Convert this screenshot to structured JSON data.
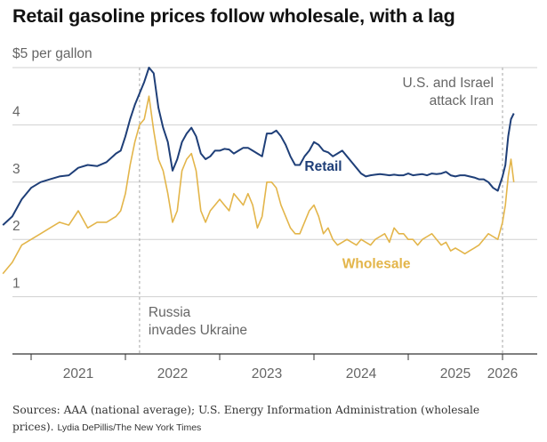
{
  "colors": {
    "retail": "#1f3f78",
    "wholesale": "#e3b54a",
    "grid": "#d0d0d0",
    "annotation_line": "#a6a6a6",
    "axis": "#333333"
  },
  "chart_data": {
    "type": "line",
    "title": "Retail gasoline prices follow wholesale, with a lag",
    "ylabel": "$5 per gallon",
    "ylim": [
      0,
      5
    ],
    "y_ticks": [
      1,
      2,
      3,
      4
    ],
    "xlim": [
      2020.7,
      2026.2
    ],
    "x_tick_labels": [
      "2021",
      "2022",
      "2023",
      "2024",
      "2025",
      "2026"
    ],
    "x_tick_positions": [
      2021.5,
      2022.5,
      2023.5,
      2024.5,
      2025.5,
      2026.0
    ],
    "x_boundaries": [
      2021,
      2022,
      2023,
      2024,
      2025,
      2026
    ],
    "grid": true,
    "series": [
      {
        "name": "Retail",
        "x": [
          2020.7,
          2020.8,
          2020.9,
          2021.0,
          2021.1,
          2021.2,
          2021.3,
          2021.4,
          2021.5,
          2021.6,
          2021.7,
          2021.8,
          2021.9,
          2021.95,
          2022.0,
          2022.05,
          2022.1,
          2022.15,
          2022.2,
          2022.25,
          2022.3,
          2022.35,
          2022.4,
          2022.45,
          2022.5,
          2022.55,
          2022.6,
          2022.65,
          2022.7,
          2022.75,
          2022.8,
          2022.85,
          2022.9,
          2022.95,
          2023.0,
          2023.05,
          2023.1,
          2023.15,
          2023.2,
          2023.25,
          2023.3,
          2023.35,
          2023.4,
          2023.45,
          2023.5,
          2023.55,
          2023.6,
          2023.65,
          2023.7,
          2023.75,
          2023.8,
          2023.85,
          2023.9,
          2023.95,
          2024.0,
          2024.05,
          2024.1,
          2024.15,
          2024.2,
          2024.25,
          2024.3,
          2024.35,
          2024.4,
          2024.45,
          2024.5,
          2024.55,
          2024.6,
          2024.65,
          2024.7,
          2024.75,
          2024.8,
          2024.85,
          2024.9,
          2024.95,
          2025.0,
          2025.05,
          2025.1,
          2025.15,
          2025.2,
          2025.25,
          2025.3,
          2025.35,
          2025.4,
          2025.45,
          2025.5,
          2025.55,
          2025.6,
          2025.65,
          2025.7,
          2025.75,
          2025.8,
          2025.85,
          2025.9,
          2025.95,
          2026.0,
          2026.03,
          2026.06,
          2026.09,
          2026.12
        ],
        "values": [
          2.25,
          2.4,
          2.7,
          2.9,
          3.0,
          3.05,
          3.1,
          3.12,
          3.25,
          3.3,
          3.28,
          3.35,
          3.5,
          3.55,
          3.8,
          4.1,
          4.35,
          4.55,
          4.75,
          5.0,
          4.9,
          4.3,
          3.95,
          3.7,
          3.2,
          3.4,
          3.7,
          3.85,
          3.95,
          3.8,
          3.5,
          3.4,
          3.45,
          3.55,
          3.55,
          3.58,
          3.57,
          3.5,
          3.55,
          3.6,
          3.6,
          3.55,
          3.5,
          3.45,
          3.85,
          3.85,
          3.9,
          3.8,
          3.65,
          3.45,
          3.3,
          3.3,
          3.45,
          3.55,
          3.7,
          3.65,
          3.55,
          3.52,
          3.45,
          3.5,
          3.55,
          3.45,
          3.35,
          3.25,
          3.15,
          3.1,
          3.12,
          3.13,
          3.14,
          3.13,
          3.12,
          3.13,
          3.12,
          3.12,
          3.15,
          3.12,
          3.13,
          3.14,
          3.12,
          3.15,
          3.14,
          3.15,
          3.18,
          3.12,
          3.1,
          3.12,
          3.12,
          3.1,
          3.08,
          3.05,
          3.05,
          3.0,
          2.9,
          2.85,
          3.1,
          3.3,
          3.8,
          4.1,
          4.2
        ]
      },
      {
        "name": "Wholesale",
        "x": [
          2020.7,
          2020.8,
          2020.9,
          2021.0,
          2021.1,
          2021.2,
          2021.3,
          2021.4,
          2021.5,
          2021.6,
          2021.7,
          2021.8,
          2021.9,
          2021.95,
          2022.0,
          2022.05,
          2022.1,
          2022.15,
          2022.2,
          2022.25,
          2022.3,
          2022.35,
          2022.4,
          2022.45,
          2022.5,
          2022.55,
          2022.6,
          2022.65,
          2022.7,
          2022.75,
          2022.8,
          2022.85,
          2022.9,
          2022.95,
          2023.0,
          2023.05,
          2023.1,
          2023.15,
          2023.2,
          2023.25,
          2023.3,
          2023.35,
          2023.4,
          2023.45,
          2023.5,
          2023.55,
          2023.6,
          2023.65,
          2023.7,
          2023.75,
          2023.8,
          2023.85,
          2023.9,
          2023.95,
          2024.0,
          2024.05,
          2024.1,
          2024.15,
          2024.2,
          2024.25,
          2024.3,
          2024.35,
          2024.4,
          2024.45,
          2024.5,
          2024.55,
          2024.6,
          2024.65,
          2024.7,
          2024.75,
          2024.8,
          2024.85,
          2024.9,
          2024.95,
          2025.0,
          2025.05,
          2025.1,
          2025.15,
          2025.2,
          2025.25,
          2025.3,
          2025.35,
          2025.4,
          2025.45,
          2025.5,
          2025.55,
          2025.6,
          2025.65,
          2025.7,
          2025.75,
          2025.8,
          2025.85,
          2025.9,
          2025.95,
          2026.0,
          2026.03,
          2026.06,
          2026.09,
          2026.12
        ],
        "values": [
          1.4,
          1.6,
          1.9,
          2.0,
          2.1,
          2.2,
          2.3,
          2.25,
          2.5,
          2.2,
          2.3,
          2.3,
          2.4,
          2.5,
          2.8,
          3.3,
          3.7,
          4.0,
          4.1,
          4.5,
          3.9,
          3.4,
          3.2,
          2.8,
          2.3,
          2.5,
          3.2,
          3.4,
          3.5,
          3.2,
          2.5,
          2.3,
          2.5,
          2.6,
          2.7,
          2.6,
          2.5,
          2.8,
          2.7,
          2.6,
          2.8,
          2.6,
          2.2,
          2.4,
          3.0,
          3.0,
          2.9,
          2.6,
          2.4,
          2.2,
          2.1,
          2.1,
          2.3,
          2.5,
          2.6,
          2.4,
          2.1,
          2.2,
          2.0,
          1.9,
          1.95,
          2.0,
          1.95,
          1.9,
          2.0,
          1.95,
          1.9,
          2.0,
          2.05,
          2.1,
          1.95,
          2.2,
          2.1,
          2.1,
          2.0,
          2.0,
          1.9,
          2.0,
          2.05,
          2.1,
          2.0,
          1.9,
          1.95,
          1.8,
          1.85,
          1.8,
          1.75,
          1.8,
          1.85,
          1.9,
          2.0,
          2.1,
          2.05,
          2.0,
          2.3,
          2.6,
          3.1,
          3.4,
          3.0
        ]
      }
    ],
    "annotations": [
      {
        "x": 2022.15,
        "lines": [
          "Russia",
          "invades Ukraine"
        ]
      },
      {
        "x": 2026.0,
        "lines": [
          "U.S. and Israel",
          "attack Iran"
        ]
      }
    ]
  },
  "footer": {
    "sources": "Sources: AAA (national average); U.S. Energy Information Administration (wholesale prices).",
    "credit": "Lydia DePillis/The New York Times"
  }
}
